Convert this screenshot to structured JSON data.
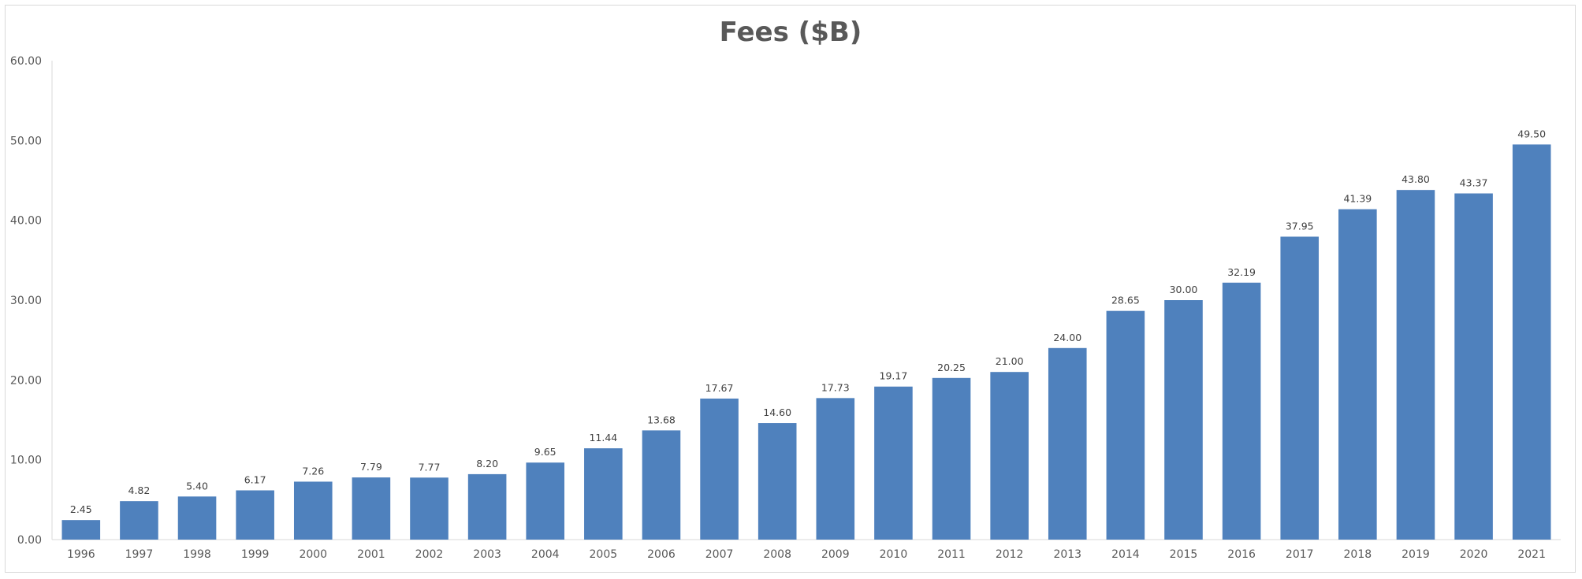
{
  "chart_data": {
    "type": "bar",
    "title": "Fees ($B)",
    "xlabel": "",
    "ylabel": "",
    "categories": [
      "1996",
      "1997",
      "1998",
      "1999",
      "2000",
      "2001",
      "2002",
      "2003",
      "2004",
      "2005",
      "2006",
      "2007",
      "2008",
      "2009",
      "2010",
      "2011",
      "2012",
      "2013",
      "2014",
      "2015",
      "2016",
      "2017",
      "2018",
      "2019",
      "2020",
      "2021"
    ],
    "values": [
      2.45,
      4.82,
      5.4,
      6.17,
      7.26,
      7.79,
      7.77,
      8.2,
      9.65,
      11.44,
      13.68,
      17.67,
      14.6,
      17.73,
      19.17,
      20.25,
      21.0,
      24.0,
      28.65,
      30.0,
      32.19,
      37.95,
      41.39,
      43.8,
      43.37,
      49.5
    ],
    "data_labels": [
      "2.45",
      "4.82",
      "5.40",
      "6.17",
      "7.26",
      "7.79",
      "7.77",
      "8.20",
      "9.65",
      "11.44",
      "13.68",
      "17.67",
      "14.60",
      "17.73",
      "19.17",
      "20.25",
      "21.00",
      "24.00",
      "28.65",
      "30.00",
      "32.19",
      "37.95",
      "41.39",
      "43.80",
      "43.37",
      "49.50"
    ],
    "yticks": [
      "0.00",
      "10.00",
      "20.00",
      "30.00",
      "40.00",
      "50.00",
      "60.00"
    ],
    "ylim": [
      0,
      60
    ],
    "grid": false,
    "legend": "none",
    "bar_color": "#4f81bd"
  }
}
